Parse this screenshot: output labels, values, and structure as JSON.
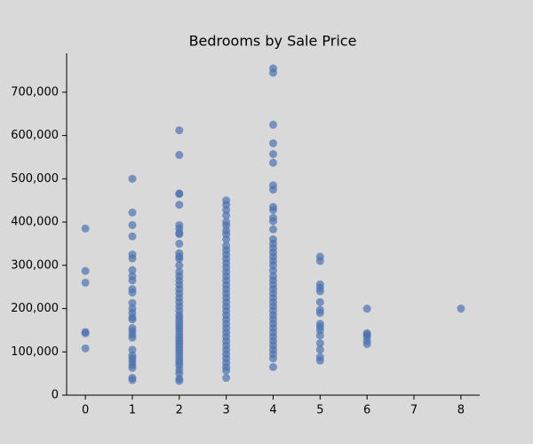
{
  "chart_data": {
    "type": "scatter",
    "title": "Bedrooms by Sale Price",
    "xlim": [
      -0.4,
      8.4
    ],
    "xticks": [
      0,
      1,
      2,
      3,
      4,
      5,
      6,
      7,
      8
    ],
    "ylim": [
      0,
      790000
    ],
    "yticks": [
      0,
      {
        "value": 100000,
        "label": "100,000"
      },
      {
        "value": 200000,
        "label": "200,000"
      },
      {
        "value": 300000,
        "label": "300,000"
      },
      {
        "value": 400000,
        "label": "400,000"
      },
      {
        "value": 500000,
        "label": "500,000"
      },
      {
        "value": 600000,
        "label": "600,000"
      },
      {
        "value": 700000,
        "label": "700,000"
      }
    ],
    "color": "#4c72b0",
    "x": [
      0,
      0,
      0,
      0,
      0,
      0,
      1,
      1,
      1,
      1,
      1,
      1,
      1,
      1,
      1,
      1,
      1,
      1,
      1,
      1,
      1,
      1,
      1,
      1,
      1,
      1,
      1,
      1,
      1,
      1,
      1,
      1,
      1,
      1,
      2,
      2,
      2,
      2,
      2,
      2,
      2,
      2,
      2,
      2,
      2,
      2,
      2,
      2,
      2,
      2,
      2,
      2,
      2,
      2,
      2,
      2,
      2,
      2,
      2,
      2,
      2,
      2,
      2,
      2,
      2,
      2,
      2,
      2,
      2,
      2,
      2,
      2,
      2,
      2,
      2,
      2,
      2,
      2,
      2,
      3,
      3,
      3,
      3,
      3,
      3,
      3,
      3,
      3,
      3,
      3,
      3,
      3,
      3,
      3,
      3,
      3,
      3,
      3,
      3,
      3,
      3,
      3,
      3,
      3,
      3,
      3,
      3,
      3,
      3,
      3,
      3,
      3,
      3,
      3,
      3,
      3,
      3,
      3,
      3,
      4,
      4,
      4,
      4,
      4,
      4,
      4,
      4,
      4,
      4,
      4,
      4,
      4,
      4,
      4,
      4,
      4,
      4,
      4,
      4,
      4,
      4,
      4,
      4,
      4,
      4,
      4,
      4,
      4,
      4,
      4,
      4,
      4,
      4,
      4,
      4,
      4,
      4,
      4,
      4,
      4,
      4,
      5,
      5,
      5,
      5,
      5,
      5,
      5,
      5,
      5,
      5,
      5,
      5,
      5,
      5,
      5,
      5,
      6,
      6,
      6,
      6,
      6,
      6,
      8
    ],
    "values": [
      385000,
      287000,
      260000,
      146000,
      143000,
      108000,
      500000,
      422000,
      393000,
      367000,
      325000,
      316000,
      289000,
      275000,
      265000,
      245000,
      237000,
      213000,
      200000,
      190000,
      180000,
      175000,
      155000,
      148000,
      140000,
      133000,
      105000,
      92000,
      85000,
      78000,
      70000,
      63000,
      40000,
      35000,
      612000,
      555000,
      466000,
      465000,
      440000,
      393000,
      385000,
      375000,
      372000,
      350000,
      328000,
      320000,
      315000,
      300000,
      285000,
      275000,
      265000,
      255000,
      245000,
      235000,
      225000,
      215000,
      205000,
      195000,
      185000,
      178000,
      170000,
      162000,
      155000,
      148000,
      140000,
      133000,
      126000,
      119000,
      112000,
      105000,
      98000,
      90000,
      82000,
      75000,
      68000,
      58000,
      50000,
      38000,
      33000,
      450000,
      440000,
      428000,
      415000,
      400000,
      392000,
      380000,
      372000,
      360000,
      345000,
      335000,
      325000,
      315000,
      305000,
      295000,
      285000,
      275000,
      265000,
      255000,
      245000,
      235000,
      225000,
      215000,
      205000,
      195000,
      185000,
      175000,
      165000,
      155000,
      145000,
      135000,
      125000,
      115000,
      105000,
      95000,
      85000,
      75000,
      65000,
      57000,
      40000,
      755000,
      745000,
      625000,
      582000,
      557000,
      537000,
      485000,
      475000,
      435000,
      428000,
      410000,
      402000,
      383000,
      360000,
      350000,
      340000,
      330000,
      320000,
      310000,
      300000,
      288000,
      275000,
      265000,
      255000,
      245000,
      235000,
      225000,
      215000,
      205000,
      195000,
      185000,
      175000,
      165000,
      155000,
      145000,
      135000,
      125000,
      115000,
      105000,
      95000,
      85000,
      65000,
      320000,
      310000,
      256000,
      248000,
      240000,
      215000,
      197000,
      190000,
      165000,
      158000,
      150000,
      138000,
      120000,
      105000,
      88000,
      80000,
      200000,
      143000,
      140000,
      135000,
      125000,
      118000,
      200000
    ]
  }
}
